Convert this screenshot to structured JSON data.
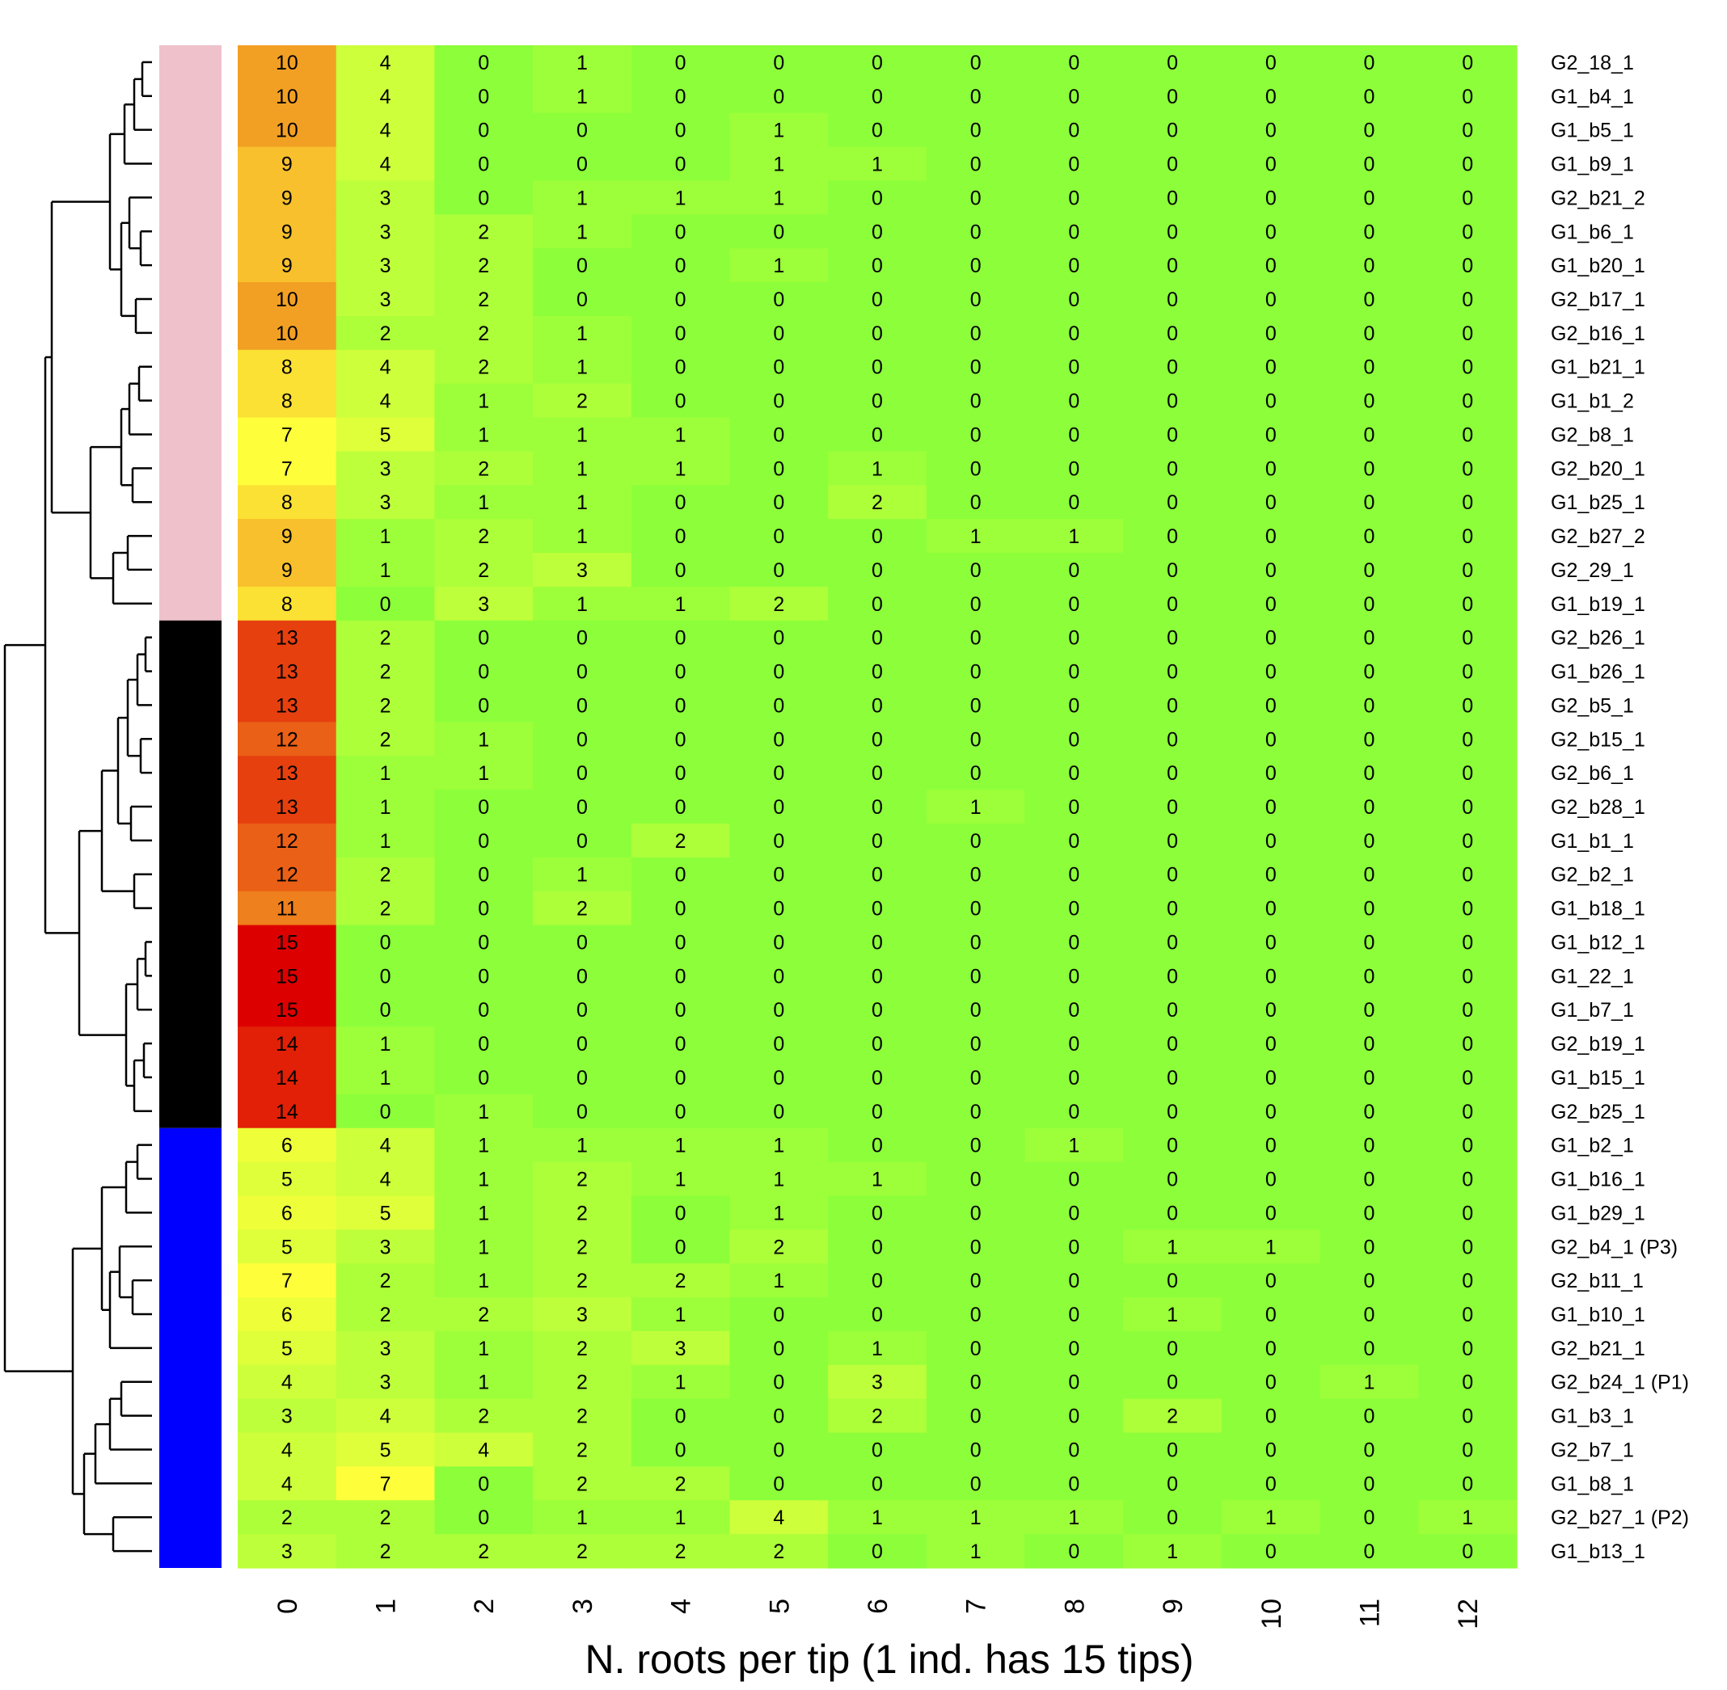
{
  "chart_data": {
    "type": "heatmap",
    "title": "",
    "xlabel": "N. roots per tip (1 ind. has 15 tips)",
    "ylabel": "",
    "columns": [
      "0",
      "1",
      "2",
      "3",
      "4",
      "5",
      "6",
      "7",
      "8",
      "9",
      "10",
      "11",
      "12"
    ],
    "rows": [
      "G2_18_1",
      "G1_b4_1",
      "G1_b5_1",
      "G1_b9_1",
      "G2_b21_2",
      "G1_b6_1",
      "G1_b20_1",
      "G2_b17_1",
      "G2_b16_1",
      "G1_b21_1",
      "G1_b1_2",
      "G2_b8_1",
      "G2_b20_1",
      "G1_b25_1",
      "G2_b27_2",
      "G2_29_1",
      "G1_b19_1",
      "G2_b26_1",
      "G1_b26_1",
      "G2_b5_1",
      "G2_b15_1",
      "G2_b6_1",
      "G2_b28_1",
      "G1_b1_1",
      "G2_b2_1",
      "G1_b18_1",
      "G1_b12_1",
      "G1_22_1",
      "G1_b7_1",
      "G2_b19_1",
      "G1_b15_1",
      "G2_b25_1",
      "G1_b2_1",
      "G1_b16_1",
      "G1_b29_1",
      "G2_b4_1 (P3)",
      "G2_b11_1",
      "G1_b10_1",
      "G2_b21_1",
      "G2_b24_1 (P1)",
      "G1_b3_1",
      "G2_b7_1",
      "G1_b8_1",
      "G2_b27_1 (P2)",
      "G1_b13_1"
    ],
    "values": [
      [
        10,
        4,
        0,
        1,
        0,
        0,
        0,
        0,
        0,
        0,
        0,
        0,
        0
      ],
      [
        10,
        4,
        0,
        1,
        0,
        0,
        0,
        0,
        0,
        0,
        0,
        0,
        0
      ],
      [
        10,
        4,
        0,
        0,
        0,
        1,
        0,
        0,
        0,
        0,
        0,
        0,
        0
      ],
      [
        9,
        4,
        0,
        0,
        0,
        1,
        1,
        0,
        0,
        0,
        0,
        0,
        0
      ],
      [
        9,
        3,
        0,
        1,
        1,
        1,
        0,
        0,
        0,
        0,
        0,
        0,
        0
      ],
      [
        9,
        3,
        2,
        1,
        0,
        0,
        0,
        0,
        0,
        0,
        0,
        0,
        0
      ],
      [
        9,
        3,
        2,
        0,
        0,
        1,
        0,
        0,
        0,
        0,
        0,
        0,
        0
      ],
      [
        10,
        3,
        2,
        0,
        0,
        0,
        0,
        0,
        0,
        0,
        0,
        0,
        0
      ],
      [
        10,
        2,
        2,
        1,
        0,
        0,
        0,
        0,
        0,
        0,
        0,
        0,
        0
      ],
      [
        8,
        4,
        2,
        1,
        0,
        0,
        0,
        0,
        0,
        0,
        0,
        0,
        0
      ],
      [
        8,
        4,
        1,
        2,
        0,
        0,
        0,
        0,
        0,
        0,
        0,
        0,
        0
      ],
      [
        7,
        5,
        1,
        1,
        1,
        0,
        0,
        0,
        0,
        0,
        0,
        0,
        0
      ],
      [
        7,
        3,
        2,
        1,
        1,
        0,
        1,
        0,
        0,
        0,
        0,
        0,
        0
      ],
      [
        8,
        3,
        1,
        1,
        0,
        0,
        2,
        0,
        0,
        0,
        0,
        0,
        0
      ],
      [
        9,
        1,
        2,
        1,
        0,
        0,
        0,
        1,
        1,
        0,
        0,
        0,
        0
      ],
      [
        9,
        1,
        2,
        3,
        0,
        0,
        0,
        0,
        0,
        0,
        0,
        0,
        0
      ],
      [
        8,
        0,
        3,
        1,
        1,
        2,
        0,
        0,
        0,
        0,
        0,
        0,
        0
      ],
      [
        13,
        2,
        0,
        0,
        0,
        0,
        0,
        0,
        0,
        0,
        0,
        0,
        0
      ],
      [
        13,
        2,
        0,
        0,
        0,
        0,
        0,
        0,
        0,
        0,
        0,
        0,
        0
      ],
      [
        13,
        2,
        0,
        0,
        0,
        0,
        0,
        0,
        0,
        0,
        0,
        0,
        0
      ],
      [
        12,
        2,
        1,
        0,
        0,
        0,
        0,
        0,
        0,
        0,
        0,
        0,
        0
      ],
      [
        13,
        1,
        1,
        0,
        0,
        0,
        0,
        0,
        0,
        0,
        0,
        0,
        0
      ],
      [
        13,
        1,
        0,
        0,
        0,
        0,
        0,
        1,
        0,
        0,
        0,
        0,
        0
      ],
      [
        12,
        1,
        0,
        0,
        2,
        0,
        0,
        0,
        0,
        0,
        0,
        0,
        0
      ],
      [
        12,
        2,
        0,
        1,
        0,
        0,
        0,
        0,
        0,
        0,
        0,
        0,
        0
      ],
      [
        11,
        2,
        0,
        2,
        0,
        0,
        0,
        0,
        0,
        0,
        0,
        0,
        0
      ],
      [
        15,
        0,
        0,
        0,
        0,
        0,
        0,
        0,
        0,
        0,
        0,
        0,
        0
      ],
      [
        15,
        0,
        0,
        0,
        0,
        0,
        0,
        0,
        0,
        0,
        0,
        0,
        0
      ],
      [
        15,
        0,
        0,
        0,
        0,
        0,
        0,
        0,
        0,
        0,
        0,
        0,
        0
      ],
      [
        14,
        1,
        0,
        0,
        0,
        0,
        0,
        0,
        0,
        0,
        0,
        0,
        0
      ],
      [
        14,
        1,
        0,
        0,
        0,
        0,
        0,
        0,
        0,
        0,
        0,
        0,
        0
      ],
      [
        14,
        0,
        1,
        0,
        0,
        0,
        0,
        0,
        0,
        0,
        0,
        0,
        0
      ],
      [
        6,
        4,
        1,
        1,
        1,
        1,
        0,
        0,
        1,
        0,
        0,
        0,
        0
      ],
      [
        5,
        4,
        1,
        2,
        1,
        1,
        1,
        0,
        0,
        0,
        0,
        0,
        0
      ],
      [
        6,
        5,
        1,
        2,
        0,
        1,
        0,
        0,
        0,
        0,
        0,
        0,
        0
      ],
      [
        5,
        3,
        1,
        2,
        0,
        2,
        0,
        0,
        0,
        1,
        1,
        0,
        0
      ],
      [
        7,
        2,
        1,
        2,
        2,
        1,
        0,
        0,
        0,
        0,
        0,
        0,
        0
      ],
      [
        6,
        2,
        2,
        3,
        1,
        0,
        0,
        0,
        0,
        1,
        0,
        0,
        0
      ],
      [
        5,
        3,
        1,
        2,
        3,
        0,
        1,
        0,
        0,
        0,
        0,
        0,
        0
      ],
      [
        4,
        3,
        1,
        2,
        1,
        0,
        3,
        0,
        0,
        0,
        0,
        1,
        0
      ],
      [
        3,
        4,
        2,
        2,
        0,
        0,
        2,
        0,
        0,
        2,
        0,
        0,
        0
      ],
      [
        4,
        5,
        4,
        2,
        0,
        0,
        0,
        0,
        0,
        0,
        0,
        0,
        0
      ],
      [
        4,
        7,
        0,
        2,
        2,
        0,
        0,
        0,
        0,
        0,
        0,
        0,
        0
      ],
      [
        2,
        2,
        0,
        1,
        1,
        4,
        1,
        1,
        1,
        0,
        1,
        0,
        1
      ],
      [
        3,
        2,
        2,
        2,
        2,
        2,
        0,
        1,
        0,
        1,
        0,
        0,
        0
      ]
    ],
    "value_range": [
      0,
      15
    ],
    "color_scale": {
      "low": "#8cff3a",
      "mid": "#ffff3a",
      "high": "#dd0000"
    },
    "cluster_groups": [
      {
        "color": "#eec1cb",
        "count": 17
      },
      {
        "color": "#000000",
        "count": 15
      },
      {
        "color": "#0000ff",
        "count": 13
      }
    ],
    "dendrogram": true,
    "legend": "none"
  }
}
